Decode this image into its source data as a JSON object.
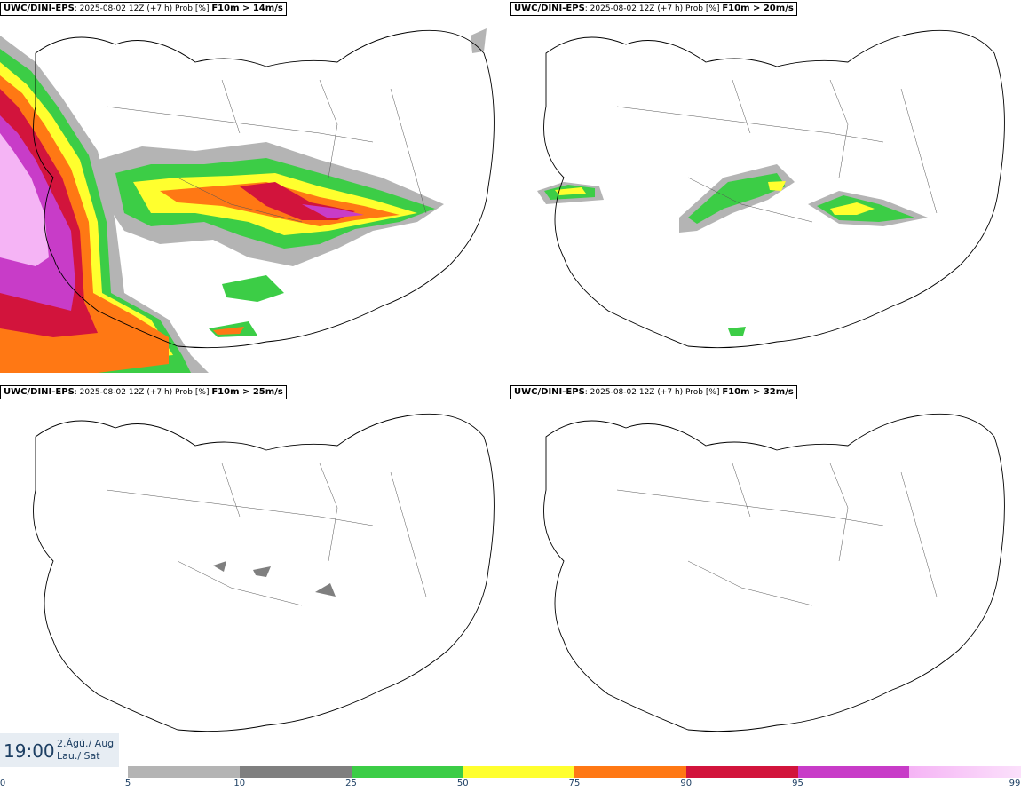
{
  "panels": [
    {
      "model": "UWC/DINI-EPS",
      "run": "2025-08-02 12Z (+7 h) Prob [%]",
      "threshold": "F10m > 14m/s"
    },
    {
      "model": "UWC/DINI-EPS",
      "run": "2025-08-02 12Z (+7 h) Prob [%]",
      "threshold": "F10m > 20m/s"
    },
    {
      "model": "UWC/DINI-EPS",
      "run": "2025-08-02 12Z (+7 h) Prob [%]",
      "threshold": "F10m > 25m/s"
    },
    {
      "model": "UWC/DINI-EPS",
      "run": "2025-08-02 12Z (+7 h) Prob [%]",
      "threshold": "F10m > 32m/s"
    }
  ],
  "valid_time": {
    "time": "19:00",
    "date_line": "2.Ágú./ Aug",
    "day_line": "Lau./ Sat"
  },
  "colorbar": {
    "ticks": [
      "0",
      "5",
      "10",
      "25",
      "50",
      "75",
      "90",
      "95",
      "99"
    ],
    "colors": [
      "#b4b4b4",
      "#7f7f7f",
      "#3ccd46",
      "#ffff2e",
      "#ff7814",
      "#d2143c",
      "#c83cc8",
      "#f5b4f5"
    ]
  }
}
